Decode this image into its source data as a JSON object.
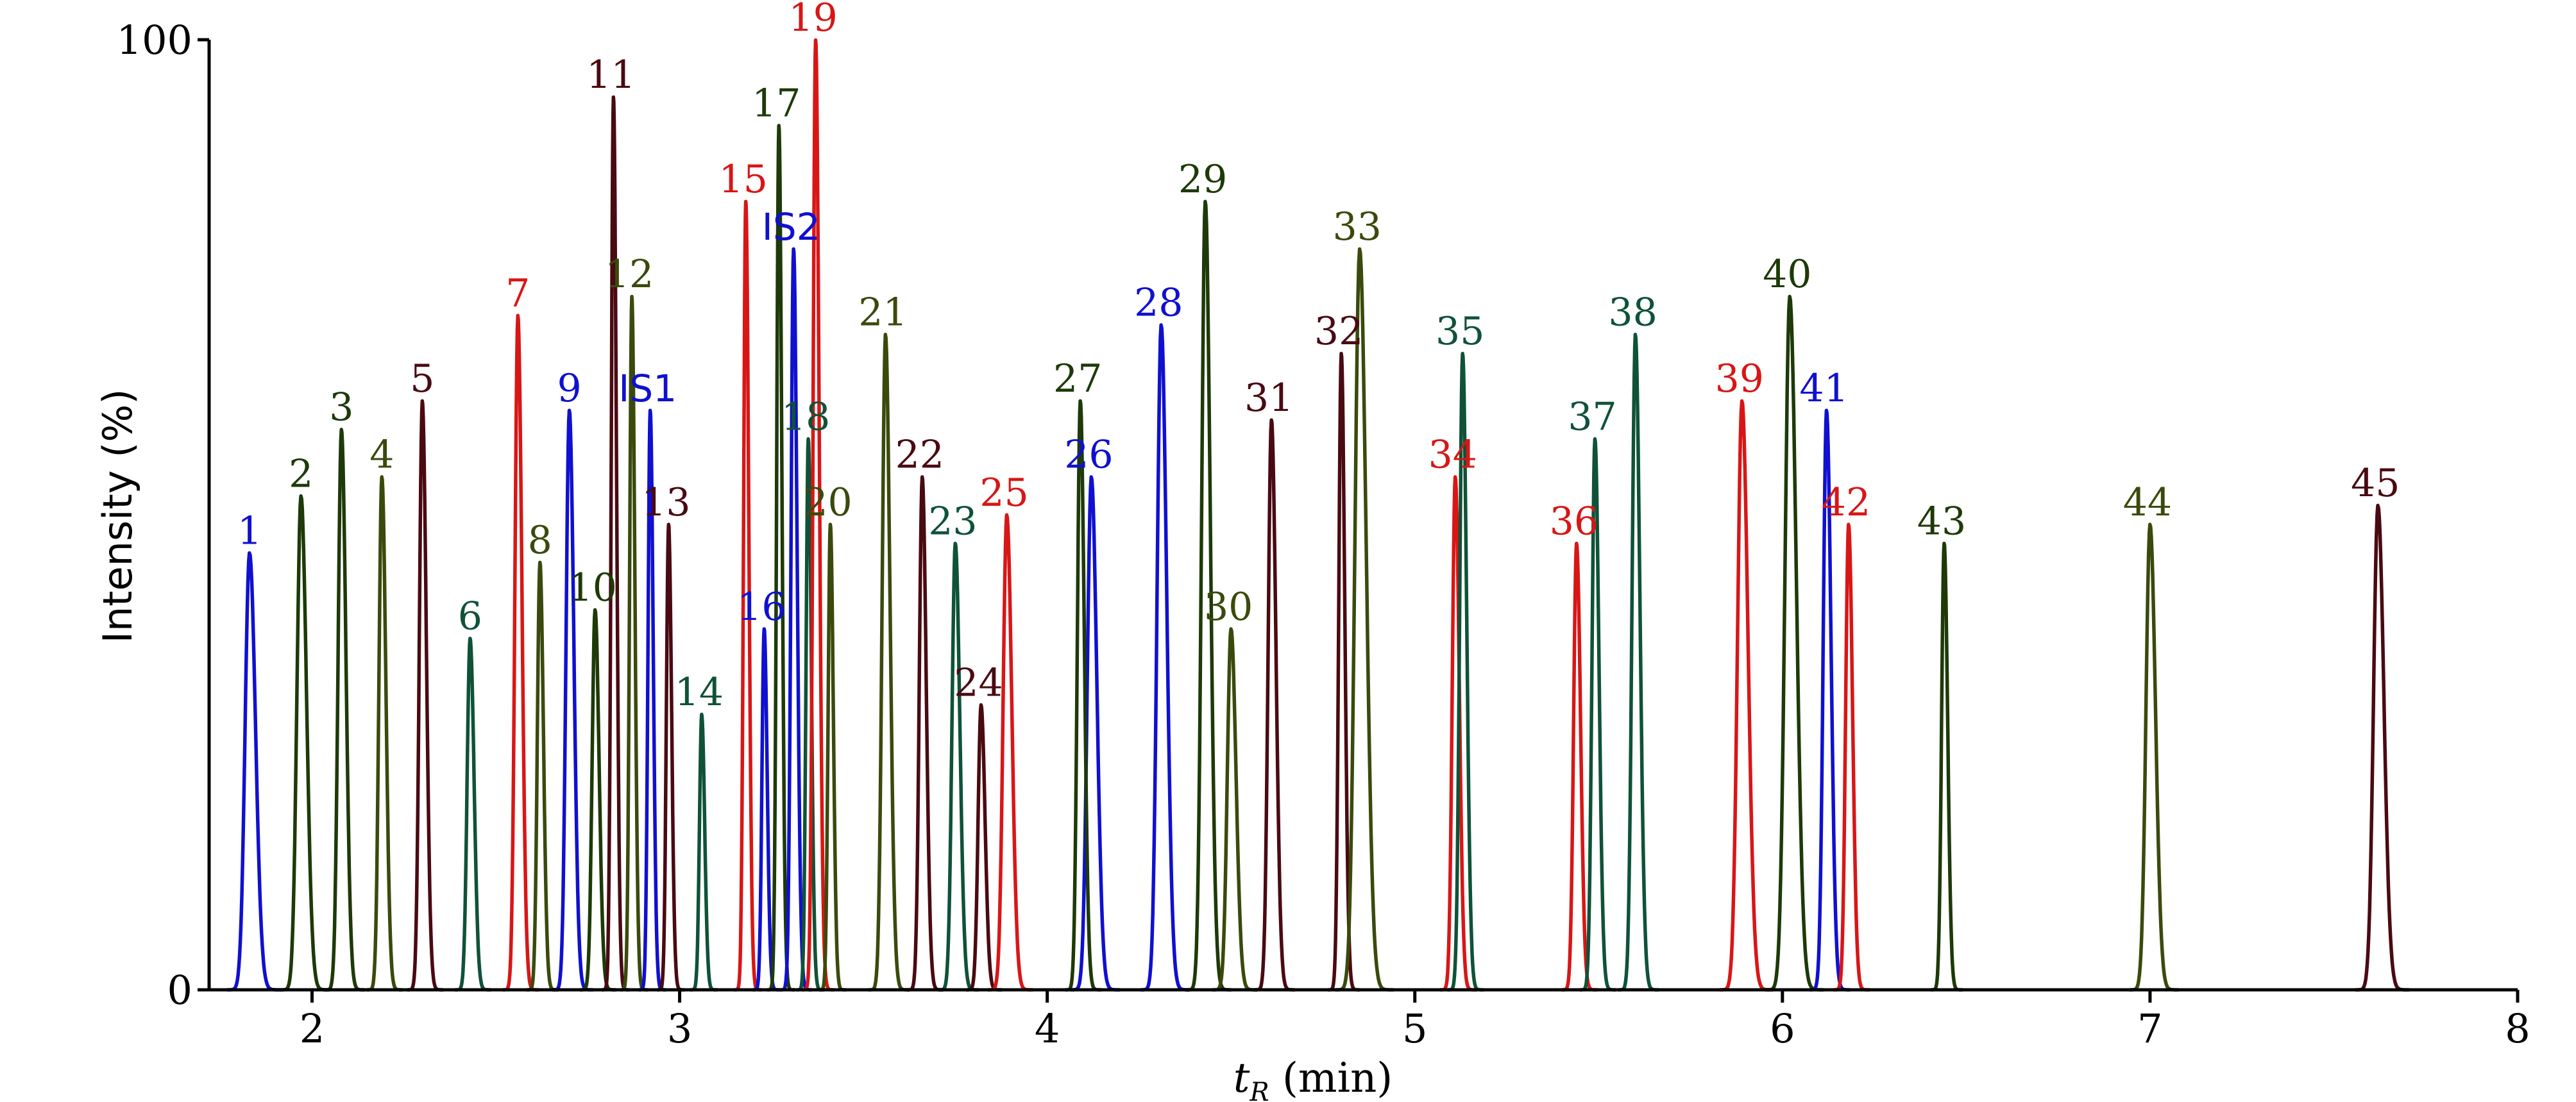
{
  "chart_data": {
    "type": "line",
    "title": "",
    "xlabel_symbol": "t",
    "xlabel_subscript": "R",
    "xlabel_unit": " (min)",
    "ylabel": "Intensity (%)",
    "xlim": [
      1.72,
      8.0
    ],
    "ylim": [
      0,
      100
    ],
    "x_ticks": [
      2,
      3,
      4,
      5,
      6,
      7,
      8
    ],
    "y_ticks": [
      0,
      100
    ],
    "colors": {
      "blue": "#1010d0",
      "red": "#d81616",
      "maroon": "#4a0a12",
      "darkgreen": "#1d3a08",
      "olive": "#3a4a0c",
      "teal": "#0f5238"
    },
    "peaks": [
      {
        "label": "1",
        "rt": 1.83,
        "height": 46,
        "color": "blue",
        "w": 0.012
      },
      {
        "label": "2",
        "rt": 1.97,
        "height": 52,
        "color": "darkgreen",
        "w": 0.011
      },
      {
        "label": "3",
        "rt": 2.08,
        "height": 59,
        "color": "darkgreen",
        "w": 0.009
      },
      {
        "label": "4",
        "rt": 2.19,
        "height": 54,
        "color": "olive",
        "w": 0.008
      },
      {
        "label": "5",
        "rt": 2.3,
        "height": 62,
        "color": "maroon",
        "w": 0.008
      },
      {
        "label": "6",
        "rt": 2.43,
        "height": 37,
        "color": "teal",
        "w": 0.008
      },
      {
        "label": "7",
        "rt": 2.56,
        "height": 71,
        "color": "red",
        "w": 0.008
      },
      {
        "label": "8",
        "rt": 2.62,
        "height": 45,
        "color": "olive",
        "w": 0.007
      },
      {
        "label": "9",
        "rt": 2.7,
        "height": 61,
        "color": "blue",
        "w": 0.009
      },
      {
        "label": "10",
        "rt": 2.77,
        "height": 40,
        "color": "darkgreen",
        "w": 0.008
      },
      {
        "label": "11",
        "rt": 2.82,
        "height": 94,
        "color": "maroon",
        "w": 0.006
      },
      {
        "label": "12",
        "rt": 2.87,
        "height": 73,
        "color": "olive",
        "w": 0.006
      },
      {
        "label": "IS1",
        "rt": 2.92,
        "height": 61,
        "color": "blue",
        "w": 0.006
      },
      {
        "label": "13",
        "rt": 2.97,
        "height": 49,
        "color": "maroon",
        "w": 0.006
      },
      {
        "label": "14",
        "rt": 3.06,
        "height": 29,
        "color": "teal",
        "w": 0.006
      },
      {
        "label": "15",
        "rt": 3.18,
        "height": 83,
        "color": "red",
        "w": 0.006
      },
      {
        "label": "16",
        "rt": 3.23,
        "height": 38,
        "color": "blue",
        "w": 0.006
      },
      {
        "label": "17",
        "rt": 3.27,
        "height": 91,
        "color": "darkgreen",
        "w": 0.006
      },
      {
        "label": "IS2",
        "rt": 3.31,
        "height": 78,
        "color": "blue",
        "w": 0.007
      },
      {
        "label": "18",
        "rt": 3.35,
        "height": 58,
        "color": "teal",
        "w": 0.006
      },
      {
        "label": "19",
        "rt": 3.37,
        "height": 100,
        "color": "red",
        "w": 0.007
      },
      {
        "label": "20",
        "rt": 3.41,
        "height": 49,
        "color": "olive",
        "w": 0.006
      },
      {
        "label": "21",
        "rt": 3.56,
        "height": 69,
        "color": "olive",
        "w": 0.009
      },
      {
        "label": "22",
        "rt": 3.66,
        "height": 54,
        "color": "maroon",
        "w": 0.008
      },
      {
        "label": "23",
        "rt": 3.75,
        "height": 47,
        "color": "teal",
        "w": 0.009
      },
      {
        "label": "24",
        "rt": 3.82,
        "height": 30,
        "color": "maroon",
        "w": 0.008
      },
      {
        "label": "25",
        "rt": 3.89,
        "height": 50,
        "color": "red",
        "w": 0.01
      },
      {
        "label": "26",
        "rt": 4.12,
        "height": 54,
        "color": "blue",
        "w": 0.011
      },
      {
        "label": "27",
        "rt": 4.09,
        "height": 62,
        "color": "darkgreen",
        "w": 0.008
      },
      {
        "label": "28",
        "rt": 4.31,
        "height": 70,
        "color": "blue",
        "w": 0.011
      },
      {
        "label": "29",
        "rt": 4.43,
        "height": 83,
        "color": "darkgreen",
        "w": 0.01
      },
      {
        "label": "30",
        "rt": 4.5,
        "height": 38,
        "color": "olive",
        "w": 0.01
      },
      {
        "label": "31",
        "rt": 4.61,
        "height": 60,
        "color": "maroon",
        "w": 0.009
      },
      {
        "label": "32",
        "rt": 4.8,
        "height": 67,
        "color": "maroon",
        "w": 0.007
      },
      {
        "label": "33",
        "rt": 4.85,
        "height": 78,
        "color": "olive",
        "w": 0.013
      },
      {
        "label": "34",
        "rt": 5.11,
        "height": 54,
        "color": "red",
        "w": 0.008
      },
      {
        "label": "35",
        "rt": 5.13,
        "height": 67,
        "color": "teal",
        "w": 0.008
      },
      {
        "label": "36",
        "rt": 5.44,
        "height": 47,
        "color": "red",
        "w": 0.008
      },
      {
        "label": "37",
        "rt": 5.49,
        "height": 58,
        "color": "teal",
        "w": 0.008
      },
      {
        "label": "38",
        "rt": 5.6,
        "height": 69,
        "color": "teal",
        "w": 0.009
      },
      {
        "label": "39",
        "rt": 5.89,
        "height": 62,
        "color": "red",
        "w": 0.012
      },
      {
        "label": "40",
        "rt": 6.02,
        "height": 73,
        "color": "darkgreen",
        "w": 0.013
      },
      {
        "label": "41",
        "rt": 6.12,
        "height": 61,
        "color": "blue",
        "w": 0.009
      },
      {
        "label": "42",
        "rt": 6.18,
        "height": 49,
        "color": "red",
        "w": 0.008
      },
      {
        "label": "43",
        "rt": 6.44,
        "height": 47,
        "color": "darkgreen",
        "w": 0.007
      },
      {
        "label": "44",
        "rt": 7.0,
        "height": 49,
        "color": "olive",
        "w": 0.011
      },
      {
        "label": "45",
        "rt": 7.62,
        "height": 51,
        "color": "maroon",
        "w": 0.012
      }
    ]
  }
}
